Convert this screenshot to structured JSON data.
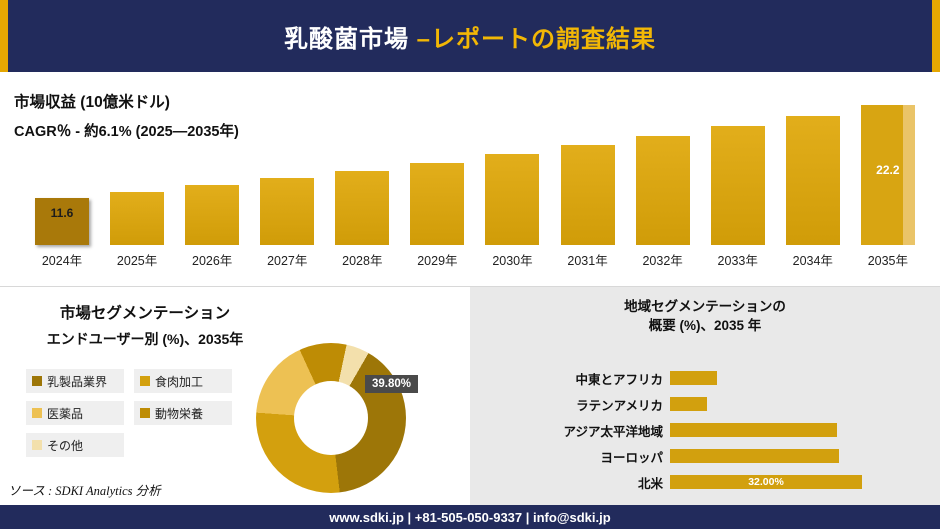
{
  "colors": {
    "navy": "#222B5C",
    "gold_accent": "#F2B705",
    "bar_gold": "#D4A011",
    "bar_dark_first": "#A9790A",
    "bar_light_edge": "#EAC468",
    "panel_gray": "#E9E9E9",
    "callout_bg": "#4A4A4A"
  },
  "header": {
    "title_main": "乳酸菌市場 ",
    "title_sub": "–レポートの調査結果"
  },
  "chart_data": [
    {
      "type": "bar",
      "title": "市場収益 (10億米ドル)",
      "subtitle": "CAGR％ - 約6.1% (2025―2035年)",
      "categories": [
        "2024年",
        "2025年",
        "2026年",
        "2027年",
        "2028年",
        "2029年",
        "2030年",
        "2031年",
        "2032年",
        "2033年",
        "2034年",
        "2035年"
      ],
      "values": [
        11.6,
        12.3,
        13.1,
        13.9,
        14.7,
        15.6,
        16.6,
        17.6,
        18.7,
        19.8,
        21.0,
        22.2
      ],
      "first_label": "11.6",
      "last_label": "22.2",
      "ylim": [
        6,
        23
      ],
      "grid": false,
      "legend": "none"
    },
    {
      "type": "pie",
      "title": "市場セグメンテーション",
      "subtitle": "エンドユーザー別 (%)、2035年",
      "labels": [
        "乳製品業界",
        "食肉加工",
        "医薬品",
        "動物栄養",
        "その他"
      ],
      "values": [
        39.8,
        28.0,
        17.0,
        10.2,
        5.0
      ],
      "colors": [
        "#9D7608",
        "#D3A00E",
        "#EDC153",
        "#BE8C05",
        "#F3E0AC"
      ],
      "highlight_label": "39.80%",
      "legend_position": "left",
      "donut": true
    },
    {
      "type": "bar",
      "orientation": "horizontal",
      "title_line1": "地域セグメンテーションの",
      "title_line2": "概要 (%)、2035 年",
      "categories": [
        "中東とアフリカ",
        "ラテンアメリカ",
        "アジア太平洋地域",
        "ヨーロッパ",
        "北米"
      ],
      "values": [
        7.8,
        6.1,
        27.8,
        28.2,
        32.0
      ],
      "value_label_shown": "32.00%",
      "grid": false
    }
  ],
  "source_note": "ソース : SDKI Analytics 分析",
  "footer": {
    "contact_line": "www.sdki.jp | +81-505-050-9337 | info@sdki.jp"
  }
}
